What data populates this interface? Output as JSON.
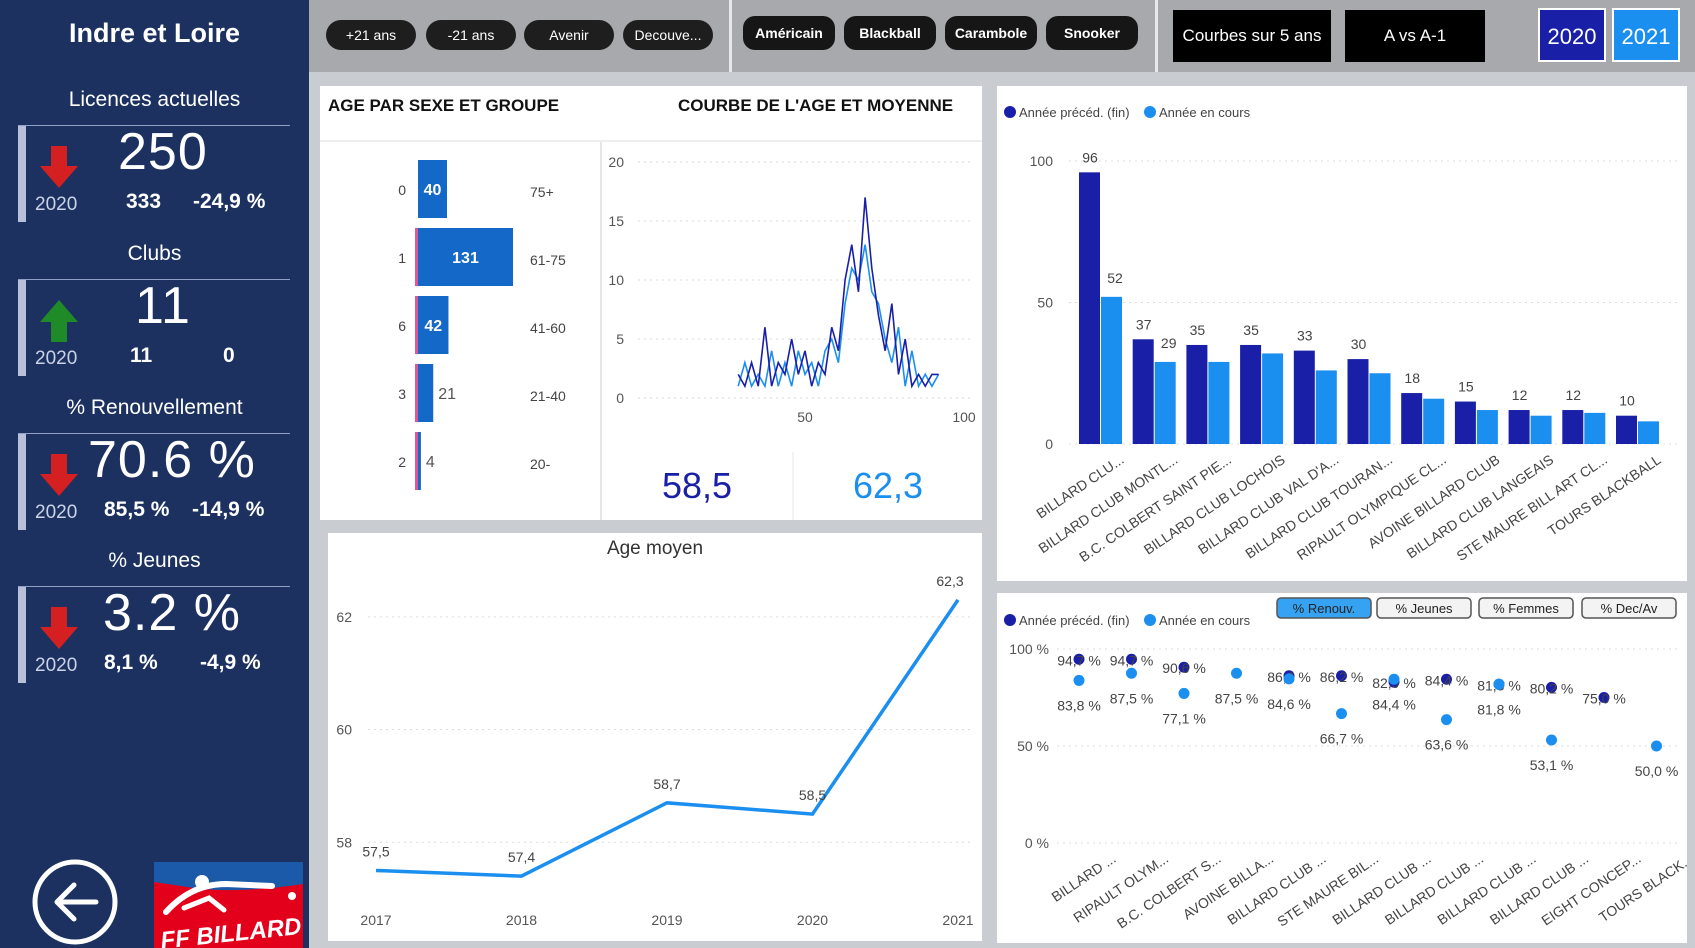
{
  "sidebar": {
    "region": "Indre et Loire",
    "kpis": [
      {
        "title": "Licences actuelles",
        "value": "250",
        "year": "2020",
        "prev": "333",
        "diff": "-24,9 %",
        "trend": "down"
      },
      {
        "title": "Clubs",
        "value": "11",
        "year": "2020",
        "prev": "11",
        "diff": "0",
        "trend": "up"
      },
      {
        "title": "% Renouvellement",
        "value": "70.6 %",
        "year": "2020",
        "prev": "85,5 %",
        "diff": "-14,9 %",
        "trend": "down"
      },
      {
        "title": "% Jeunes",
        "value": "3.2 %",
        "year": "2020",
        "prev": "8,1 %",
        "diff": "-4,9 %",
        "trend": "down"
      }
    ],
    "logo_text": "FF BILLARD",
    "back_icon": "back-arrow-icon"
  },
  "topbar": {
    "age_filters": [
      "+21 ans",
      "-21 ans",
      "Avenir",
      "Decouve..."
    ],
    "game_filters": [
      "Américain",
      "Blackball",
      "Carambole",
      "Snooker"
    ],
    "views": [
      "Courbes sur 5 ans",
      "A vs A-1"
    ],
    "years": [
      "2020",
      "2021"
    ],
    "active_year": "2021"
  },
  "age_panel": {
    "title_left": "AGE PAR SEXE ET GROUPE",
    "title_right": "COURBE DE L'AGE ET MOYENNE",
    "avg_prev": "58,5",
    "avg_cur": "62,3"
  },
  "colors": {
    "prev": "#1a1fa8",
    "cur": "#1b8ff0",
    "female": "#e0559a",
    "sidebar": "#1c3160"
  },
  "chart_data": [
    {
      "type": "bar",
      "id": "age-groups",
      "orientation": "horizontal",
      "categories": [
        "75+",
        "61-75",
        "41-60",
        "21-40",
        "20-"
      ],
      "series": [
        {
          "values": [
            0,
            1,
            6,
            3,
            2
          ]
        },
        {
          "values": [
            40,
            131,
            42,
            21,
            4
          ]
        }
      ]
    },
    {
      "type": "line",
      "id": "age-curve",
      "xlim": [
        0,
        100
      ],
      "ylim": [
        0,
        20
      ],
      "xticks": [
        50,
        100
      ],
      "yticks": [
        0,
        5,
        10,
        15,
        20
      ],
      "series": [
        {
          "x": [
            30,
            32,
            34,
            36,
            38,
            40,
            42,
            44,
            46,
            48,
            50,
            52,
            54,
            56,
            58,
            60,
            62,
            64,
            66,
            68,
            70,
            72,
            74,
            76,
            78,
            80,
            82,
            84,
            86,
            88,
            90
          ],
          "values": [
            2,
            1,
            3,
            1,
            6,
            1,
            3,
            2,
            5,
            2,
            4,
            1,
            3,
            2,
            6,
            4,
            10,
            13,
            9,
            17,
            11,
            7,
            4,
            8,
            2,
            5,
            1,
            2,
            1,
            2,
            2
          ]
        },
        {
          "x": [
            30,
            32,
            34,
            36,
            38,
            40,
            42,
            44,
            46,
            48,
            50,
            52,
            54,
            56,
            58,
            60,
            62,
            64,
            66,
            68,
            70,
            72,
            74,
            76,
            78,
            80,
            82,
            84,
            86,
            88,
            90
          ],
          "values": [
            1,
            3,
            1,
            2,
            1,
            4,
            1,
            3,
            1,
            4,
            2,
            3,
            1,
            4,
            5,
            3,
            8,
            11,
            10,
            13,
            9,
            8,
            5,
            3,
            6,
            1,
            4,
            1,
            2,
            1,
            2
          ]
        }
      ]
    },
    {
      "type": "line",
      "id": "age-moyen",
      "title": "Age moyen",
      "x": [
        "2017",
        "2018",
        "2019",
        "2020",
        "2021"
      ],
      "values": [
        57.5,
        57.4,
        58.7,
        58.5,
        62.3
      ],
      "value_labels": [
        "57,5",
        "57,4",
        "58,7",
        "58,5",
        "62,3"
      ],
      "yticks": [
        58,
        60,
        62
      ],
      "ylim": [
        57.1,
        62.6
      ]
    },
    {
      "type": "bar",
      "id": "clubs-licences",
      "legend": [
        "Année précéd. (fin)",
        "Année en cours"
      ],
      "categories": [
        "BILLARD CLU...",
        "BILLARD CLUB MONTL...",
        "B.C. COLBERT SAINT PIE...",
        "BILLARD CLUB LOCHOIS",
        "BILLARD CLUB VAL D'A...",
        "BILLARD CLUB TOURAN...",
        "RIPAULT OLYMPIQUE CL...",
        "AVOINE BILLARD CLUB",
        "BILLARD CLUB LANGEAIS",
        "STE MAURE BILL ART CL...",
        "TOURS BLACKBALL"
      ],
      "series": [
        {
          "name": "Année précéd. (fin)",
          "values": [
            96,
            37,
            35,
            35,
            33,
            30,
            18,
            15,
            12,
            12,
            10
          ]
        },
        {
          "name": "Année en cours",
          "values": [
            52,
            29,
            29,
            32,
            26,
            25,
            16,
            12,
            10,
            11,
            8
          ]
        }
      ],
      "data_labels": [
        "96",
        "52",
        "37",
        "29",
        "35",
        "35",
        "33",
        "30",
        "18",
        "15",
        "12",
        "12",
        "10"
      ],
      "yticks": [
        0,
        50,
        100
      ],
      "ylim": [
        0,
        100
      ]
    },
    {
      "type": "scatter",
      "id": "clubs-pct",
      "legend": [
        "Année précéd. (fin)",
        "Année en cours"
      ],
      "tabs": [
        "% Renouv.",
        "% Jeunes",
        "% Femmes",
        "% Dec/Av"
      ],
      "active_tab": "% Renouv.",
      "categories": [
        "BILLARD ...",
        "RIPAULT OLYM...",
        "B.C. COLBERT S...",
        "AVOINE BILLA...",
        "BILLARD CLUB ...",
        "STE MAURE BIL...",
        "BILLARD CLUB ...",
        "BILLARD CLUB ...",
        "BILLARD CLUB ...",
        "BILLARD CLUB ...",
        "EIGHT CONCEP...",
        "TOURS BLACK..."
      ],
      "series": [
        {
          "name": "Année précéd. (fin)",
          "values": [
            94.7,
            94.7,
            90.6,
            null,
            86.2,
            86.2,
            82.9,
            84.4,
            81.8,
            80.2,
            75.0,
            null
          ]
        },
        {
          "name": "Année en cours",
          "values": [
            83.8,
            87.5,
            77.1,
            87.5,
            84.6,
            66.7,
            84.4,
            63.6,
            81.8,
            53.1,
            null,
            50.0
          ]
        }
      ],
      "data_labels": [
        "94,7 %",
        "83,8 %",
        "94,7 %",
        "77,1 %",
        "90,6 %",
        "87,5 %",
        "86,2 %",
        "84,6 %",
        "66,7 %",
        "82,9 %",
        "84,4 %",
        "83,8 %",
        "63,6 %",
        "81,8 %",
        "53,1 %",
        "80,2 %",
        "75,0 %"
      ],
      "yticks": [
        "0 %",
        "50 %",
        "100 %"
      ],
      "ylim": [
        0,
        100
      ]
    }
  ]
}
